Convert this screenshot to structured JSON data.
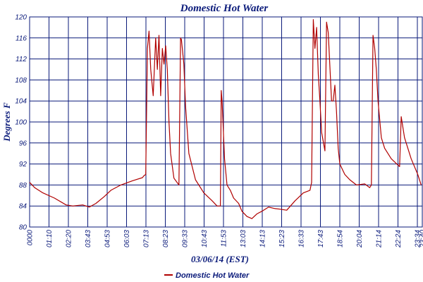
{
  "chart_data": {
    "type": "line",
    "title": "Domestic Hot Water",
    "xlabel": "03/06/14 (EST)",
    "ylabel": "Degrees F",
    "ylim": [
      80,
      120
    ],
    "y_ticks": [
      "80",
      "84",
      "88",
      "92",
      "96",
      "100",
      "104",
      "108",
      "112",
      "116",
      "120"
    ],
    "x_tick_labels": [
      "0000",
      "01:10",
      "02:20",
      "03:43",
      "04:53",
      "06:03",
      "07:13",
      "08:23",
      "09:33",
      "10:43",
      "11:53",
      "13:03",
      "14:13",
      "15:23",
      "16:33",
      "17:43",
      "18:54",
      "20:04",
      "21:14",
      "22:24",
      "23:34",
      "23:40"
    ],
    "x_range_hours": [
      0,
      23.67
    ],
    "grid": true,
    "legend_position": "bottom",
    "colors": {
      "series": "#b00000",
      "grid": "#0a1a7a",
      "text": "#0a1a7a"
    },
    "series": [
      {
        "name": "Domestic Hot Water",
        "x": [
          0,
          0.3,
          0.8,
          1.5,
          2.2,
          2.6,
          3.2,
          3.6,
          4.0,
          4.5,
          4.9,
          5.5,
          6.2,
          6.8,
          6.9,
          7.0,
          7.1,
          7.2,
          7.3,
          7.45,
          7.6,
          7.7,
          7.8,
          7.9,
          8.0,
          8.1,
          8.2,
          8.3,
          8.4,
          8.5,
          8.7,
          9.0,
          9.1,
          9.15,
          9.3,
          9.4,
          9.6,
          10.0,
          10.5,
          11.0,
          11.3,
          11.5,
          11.55,
          11.6,
          11.75,
          11.9,
          12.1,
          12.3,
          12.6,
          12.8,
          13.1,
          13.4,
          13.7,
          14.0,
          14.4,
          14.8,
          15.1,
          15.5,
          16.0,
          16.5,
          16.9,
          17.0,
          17.1,
          17.2,
          17.3,
          17.4,
          17.5,
          17.6,
          17.8,
          17.9,
          18.0,
          18.2,
          18.3,
          18.4,
          18.5,
          18.6,
          18.7,
          19.0,
          19.3,
          19.7,
          20.2,
          20.5,
          20.6,
          20.7,
          20.8,
          20.9,
          21.0,
          21.2,
          21.4,
          21.8,
          22.3,
          22.4,
          22.6,
          23.0,
          23.4,
          23.6
        ],
        "values": [
          88.5,
          87.5,
          86.5,
          85.5,
          84.2,
          84.0,
          84.2,
          83.8,
          84.5,
          85.8,
          87.0,
          88.0,
          88.8,
          89.4,
          89.8,
          90.0,
          114,
          117.3,
          110,
          105,
          116,
          110,
          116.5,
          105,
          114,
          111,
          114.5,
          110,
          100,
          94,
          89.3,
          88,
          116,
          115.7,
          111,
          103,
          94,
          89,
          86.5,
          85,
          84,
          84,
          106,
          104,
          93,
          88,
          87,
          85.5,
          84.5,
          83,
          82,
          81.6,
          82.5,
          83,
          83.8,
          83.5,
          83.4,
          83.2,
          85,
          86.5,
          87,
          88.5,
          119.5,
          114,
          118,
          109,
          104,
          98,
          94.5,
          119,
          117,
          104,
          104,
          107,
          102,
          95,
          92,
          90,
          89,
          88,
          88.2,
          87.5,
          88,
          116.5,
          114,
          110,
          104,
          97,
          95,
          93,
          91.5,
          101,
          97,
          93,
          90,
          88
        ]
      }
    ]
  }
}
